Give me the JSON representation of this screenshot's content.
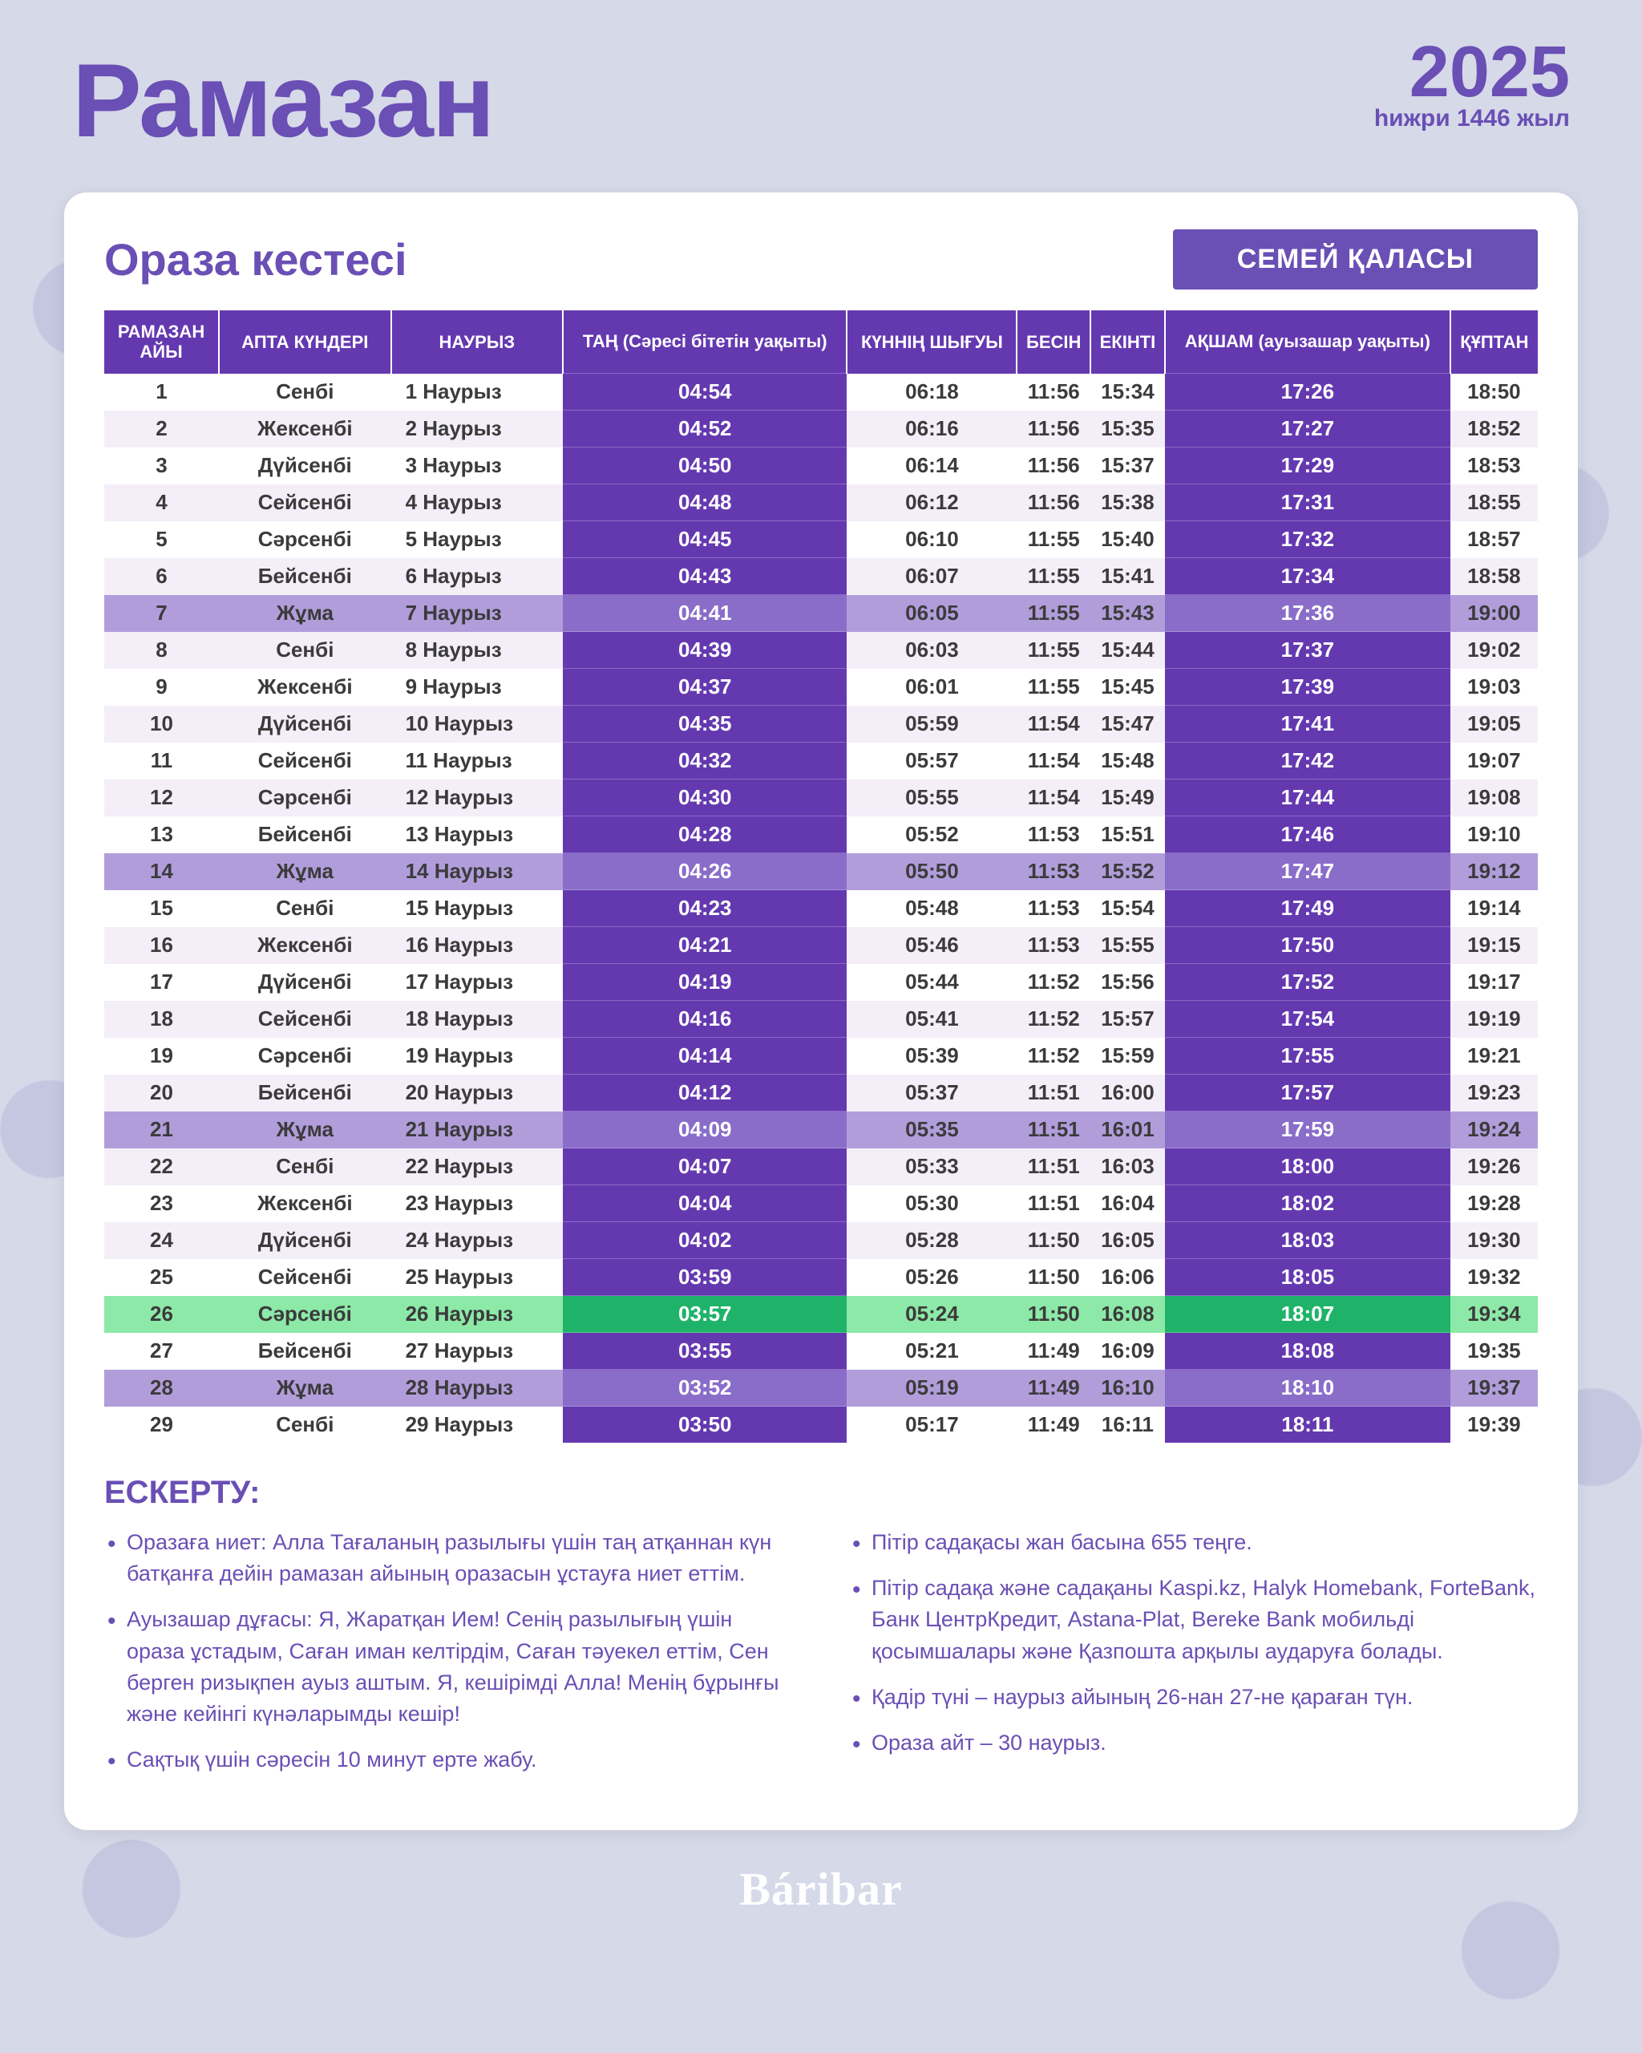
{
  "header": {
    "title": "Рамазан",
    "year": "2025",
    "year_sub": "һижри 1446 жыл"
  },
  "schedule": {
    "title": "Ораза кестесі",
    "city": "СЕМЕЙ ҚАЛАСЫ",
    "columns": [
      "РАМАЗАН АЙЫ",
      "АПТА КҮНДЕРІ",
      "НАУРЫЗ",
      "ТАҢ (Сәресі бітетін уақыты)",
      "КҮННІҢ ШЫҒУЫ",
      "БЕСІН",
      "ЕКІНТІ",
      "АҚШАМ (ауызашар уақыты)",
      "ҚҰПТАН"
    ],
    "row_styles": {
      "even_bg": "#f4eef9",
      "odd_bg": "#ffffff",
      "friday_bg": "#b29ddb",
      "friday_hi_bg": "#8a6dc9",
      "green_bg": "#8de9a8",
      "green_hi_bg": "#1fb36a"
    },
    "rows": [
      {
        "n": "1",
        "dow": "Сенбі",
        "date": "1 Наурыз",
        "fajr": "04:54",
        "sun": "06:18",
        "dhuhr": "11:56",
        "asr": "15:34",
        "mag": "17:26",
        "isha": "18:50",
        "type": "norm"
      },
      {
        "n": "2",
        "dow": "Жексенбі",
        "date": "2 Наурыз",
        "fajr": "04:52",
        "sun": "06:16",
        "dhuhr": "11:56",
        "asr": "15:35",
        "mag": "17:27",
        "isha": "18:52",
        "type": "norm"
      },
      {
        "n": "3",
        "dow": "Дүйсенбі",
        "date": "3 Наурыз",
        "fajr": "04:50",
        "sun": "06:14",
        "dhuhr": "11:56",
        "asr": "15:37",
        "mag": "17:29",
        "isha": "18:53",
        "type": "norm"
      },
      {
        "n": "4",
        "dow": "Сейсенбі",
        "date": "4 Наурыз",
        "fajr": "04:48",
        "sun": "06:12",
        "dhuhr": "11:56",
        "asr": "15:38",
        "mag": "17:31",
        "isha": "18:55",
        "type": "norm"
      },
      {
        "n": "5",
        "dow": "Сәрсенбі",
        "date": "5 Наурыз",
        "fajr": "04:45",
        "sun": "06:10",
        "dhuhr": "11:55",
        "asr": "15:40",
        "mag": "17:32",
        "isha": "18:57",
        "type": "norm"
      },
      {
        "n": "6",
        "dow": "Бейсенбі",
        "date": "6 Наурыз",
        "fajr": "04:43",
        "sun": "06:07",
        "dhuhr": "11:55",
        "asr": "15:41",
        "mag": "17:34",
        "isha": "18:58",
        "type": "norm"
      },
      {
        "n": "7",
        "dow": "Жұма",
        "date": "7 Наурыз",
        "fajr": "04:41",
        "sun": "06:05",
        "dhuhr": "11:55",
        "asr": "15:43",
        "mag": "17:36",
        "isha": "19:00",
        "type": "fri"
      },
      {
        "n": "8",
        "dow": "Сенбі",
        "date": "8 Наурыз",
        "fajr": "04:39",
        "sun": "06:03",
        "dhuhr": "11:55",
        "asr": "15:44",
        "mag": "17:37",
        "isha": "19:02",
        "type": "norm"
      },
      {
        "n": "9",
        "dow": "Жексенбі",
        "date": "9 Наурыз",
        "fajr": "04:37",
        "sun": "06:01",
        "dhuhr": "11:55",
        "asr": "15:45",
        "mag": "17:39",
        "isha": "19:03",
        "type": "norm"
      },
      {
        "n": "10",
        "dow": "Дүйсенбі",
        "date": "10 Наурыз",
        "fajr": "04:35",
        "sun": "05:59",
        "dhuhr": "11:54",
        "asr": "15:47",
        "mag": "17:41",
        "isha": "19:05",
        "type": "norm"
      },
      {
        "n": "11",
        "dow": "Сейсенбі",
        "date": "11 Наурыз",
        "fajr": "04:32",
        "sun": "05:57",
        "dhuhr": "11:54",
        "asr": "15:48",
        "mag": "17:42",
        "isha": "19:07",
        "type": "norm"
      },
      {
        "n": "12",
        "dow": "Сәрсенбі",
        "date": "12 Наурыз",
        "fajr": "04:30",
        "sun": "05:55",
        "dhuhr": "11:54",
        "asr": "15:49",
        "mag": "17:44",
        "isha": "19:08",
        "type": "norm"
      },
      {
        "n": "13",
        "dow": "Бейсенбі",
        "date": "13 Наурыз",
        "fajr": "04:28",
        "sun": "05:52",
        "dhuhr": "11:53",
        "asr": "15:51",
        "mag": "17:46",
        "isha": "19:10",
        "type": "norm"
      },
      {
        "n": "14",
        "dow": "Жұма",
        "date": "14 Наурыз",
        "fajr": "04:26",
        "sun": "05:50",
        "dhuhr": "11:53",
        "asr": "15:52",
        "mag": "17:47",
        "isha": "19:12",
        "type": "fri"
      },
      {
        "n": "15",
        "dow": "Сенбі",
        "date": "15 Наурыз",
        "fajr": "04:23",
        "sun": "05:48",
        "dhuhr": "11:53",
        "asr": "15:54",
        "mag": "17:49",
        "isha": "19:14",
        "type": "norm"
      },
      {
        "n": "16",
        "dow": "Жексенбі",
        "date": "16 Наурыз",
        "fajr": "04:21",
        "sun": "05:46",
        "dhuhr": "11:53",
        "asr": "15:55",
        "mag": "17:50",
        "isha": "19:15",
        "type": "norm"
      },
      {
        "n": "17",
        "dow": "Дүйсенбі",
        "date": "17 Наурыз",
        "fajr": "04:19",
        "sun": "05:44",
        "dhuhr": "11:52",
        "asr": "15:56",
        "mag": "17:52",
        "isha": "19:17",
        "type": "norm"
      },
      {
        "n": "18",
        "dow": "Сейсенбі",
        "date": "18 Наурыз",
        "fajr": "04:16",
        "sun": "05:41",
        "dhuhr": "11:52",
        "asr": "15:57",
        "mag": "17:54",
        "isha": "19:19",
        "type": "norm"
      },
      {
        "n": "19",
        "dow": "Сәрсенбі",
        "date": "19 Наурыз",
        "fajr": "04:14",
        "sun": "05:39",
        "dhuhr": "11:52",
        "asr": "15:59",
        "mag": "17:55",
        "isha": "19:21",
        "type": "norm"
      },
      {
        "n": "20",
        "dow": "Бейсенбі",
        "date": "20 Наурыз",
        "fajr": "04:12",
        "sun": "05:37",
        "dhuhr": "11:51",
        "asr": "16:00",
        "mag": "17:57",
        "isha": "19:23",
        "type": "norm"
      },
      {
        "n": "21",
        "dow": "Жұма",
        "date": "21 Наурыз",
        "fajr": "04:09",
        "sun": "05:35",
        "dhuhr": "11:51",
        "asr": "16:01",
        "mag": "17:59",
        "isha": "19:24",
        "type": "fri"
      },
      {
        "n": "22",
        "dow": "Сенбі",
        "date": "22 Наурыз",
        "fajr": "04:07",
        "sun": "05:33",
        "dhuhr": "11:51",
        "asr": "16:03",
        "mag": "18:00",
        "isha": "19:26",
        "type": "norm"
      },
      {
        "n": "23",
        "dow": "Жексенбі",
        "date": "23 Наурыз",
        "fajr": "04:04",
        "sun": "05:30",
        "dhuhr": "11:51",
        "asr": "16:04",
        "mag": "18:02",
        "isha": "19:28",
        "type": "norm"
      },
      {
        "n": "24",
        "dow": "Дүйсенбі",
        "date": "24 Наурыз",
        "fajr": "04:02",
        "sun": "05:28",
        "dhuhr": "11:50",
        "asr": "16:05",
        "mag": "18:03",
        "isha": "19:30",
        "type": "norm"
      },
      {
        "n": "25",
        "dow": "Сейсенбі",
        "date": "25 Наурыз",
        "fajr": "03:59",
        "sun": "05:26",
        "dhuhr": "11:50",
        "asr": "16:06",
        "mag": "18:05",
        "isha": "19:32",
        "type": "norm"
      },
      {
        "n": "26",
        "dow": "Сәрсенбі",
        "date": "26 Наурыз",
        "fajr": "03:57",
        "sun": "05:24",
        "dhuhr": "11:50",
        "asr": "16:08",
        "mag": "18:07",
        "isha": "19:34",
        "type": "green"
      },
      {
        "n": "27",
        "dow": "Бейсенбі",
        "date": "27 Наурыз",
        "fajr": "03:55",
        "sun": "05:21",
        "dhuhr": "11:49",
        "asr": "16:09",
        "mag": "18:08",
        "isha": "19:35",
        "type": "norm"
      },
      {
        "n": "28",
        "dow": "Жұма",
        "date": "28 Наурыз",
        "fajr": "03:52",
        "sun": "05:19",
        "dhuhr": "11:49",
        "asr": "16:10",
        "mag": "18:10",
        "isha": "19:37",
        "type": "fri"
      },
      {
        "n": "29",
        "dow": "Сенбі",
        "date": "29 Наурыз",
        "fajr": "03:50",
        "sun": "05:17",
        "dhuhr": "11:49",
        "asr": "16:11",
        "mag": "18:11",
        "isha": "19:39",
        "type": "norm"
      }
    ]
  },
  "notes": {
    "title": "ЕСКЕРТУ:",
    "left": [
      "Оразаға ниет: Алла Тағаланың разылығы үшін таң атқаннан күн батқанға дейін рамазан айының оразасын ұстауға ниет еттім.",
      "Ауызашар дұғасы: Я, Жаратқан Ием! Сенің разылығың үшін ораза ұстадым, Саған иман келтірдім, Саған тәуекел еттім, Сен берген ризықпен ауыз аштым. Я, кешірімді Алла! Менің бұрынғы және кейінгі күнәларымды кешір!",
      "Сақтық үшін сәресін 10 минут ерте жабу."
    ],
    "right": [
      "Пітір садақасы жан басына 655 теңге.",
      "Пітір садақа және садақаны Kaspi.kz, Halyk Homebank, ForteBank, Банк ЦентрКредит, Astana-Plat, Bereke Bank мобильді қосымшалары және Қазпошта арқылы аударуға болады.",
      "Қадір түні – наурыз айының 26-нан 27-не қараған түн.",
      "Ораза айт – 30 наурыз."
    ]
  },
  "footer": "Báribar"
}
